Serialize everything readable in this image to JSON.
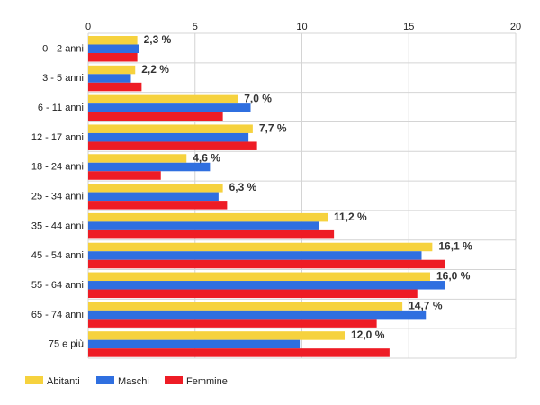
{
  "chart_data": {
    "type": "bar",
    "orientation": "horizontal",
    "categories": [
      "0 - 2 anni",
      "3 - 5 anni",
      "6 - 11 anni",
      "12 - 17 anni",
      "18 - 24 anni",
      "25 - 34 anni",
      "35 - 44 anni",
      "45 - 54 anni",
      "55 - 64 anni",
      "65 - 74 anni",
      "75 e più"
    ],
    "series": [
      {
        "name": "Abitanti",
        "color": "#f6d23e",
        "values": [
          2.3,
          2.2,
          7.0,
          7.7,
          4.6,
          6.3,
          11.2,
          16.1,
          16.0,
          14.7,
          12.0
        ]
      },
      {
        "name": "Maschi",
        "color": "#2f6fe0",
        "values": [
          2.4,
          2.0,
          7.6,
          7.5,
          5.7,
          6.1,
          10.8,
          15.6,
          16.7,
          15.8,
          9.9
        ]
      },
      {
        "name": "Femmine",
        "color": "#ee1c25",
        "values": [
          2.3,
          2.5,
          6.3,
          7.9,
          3.4,
          6.5,
          11.5,
          16.7,
          15.4,
          13.5,
          14.1
        ]
      }
    ],
    "data_labels": [
      "2,3 %",
      "2,2 %",
      "7,0 %",
      "7,7 %",
      "4,6 %",
      "6,3 %",
      "11,2 %",
      "16,1 %",
      "16,0 %",
      "14,7 %",
      "12,0 %"
    ],
    "x_ticks": [
      "0",
      "5",
      "10",
      "15",
      "20"
    ],
    "xlim": [
      0,
      20
    ],
    "grid": true,
    "legend_position": "bottom-left"
  }
}
